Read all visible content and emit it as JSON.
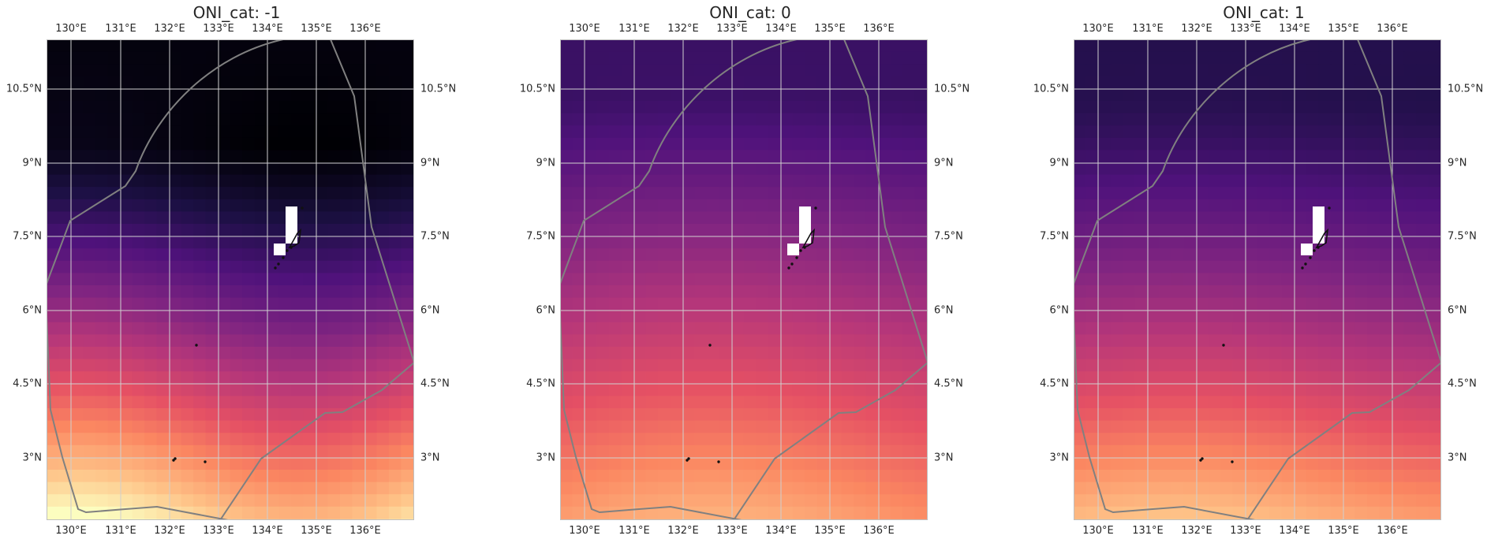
{
  "panels": [
    {
      "title": "ONI_cat: -1",
      "variant": "cold"
    },
    {
      "title": "ONI_cat: 0",
      "variant": "neutral"
    },
    {
      "title": "ONI_cat: 1",
      "variant": "warm"
    }
  ],
  "lon_ticks": [
    "130°E",
    "131°E",
    "132°E",
    "133°E",
    "134°E",
    "135°E",
    "136°E"
  ],
  "lat_ticks": [
    "10.5°N",
    "9°N",
    "7.5°N",
    "6°N",
    "4.5°N",
    "3°N"
  ],
  "colormap": "magma",
  "colors": {
    "outline": "#808080",
    "grid": "#d0d0d0",
    "land": "#111111"
  }
}
